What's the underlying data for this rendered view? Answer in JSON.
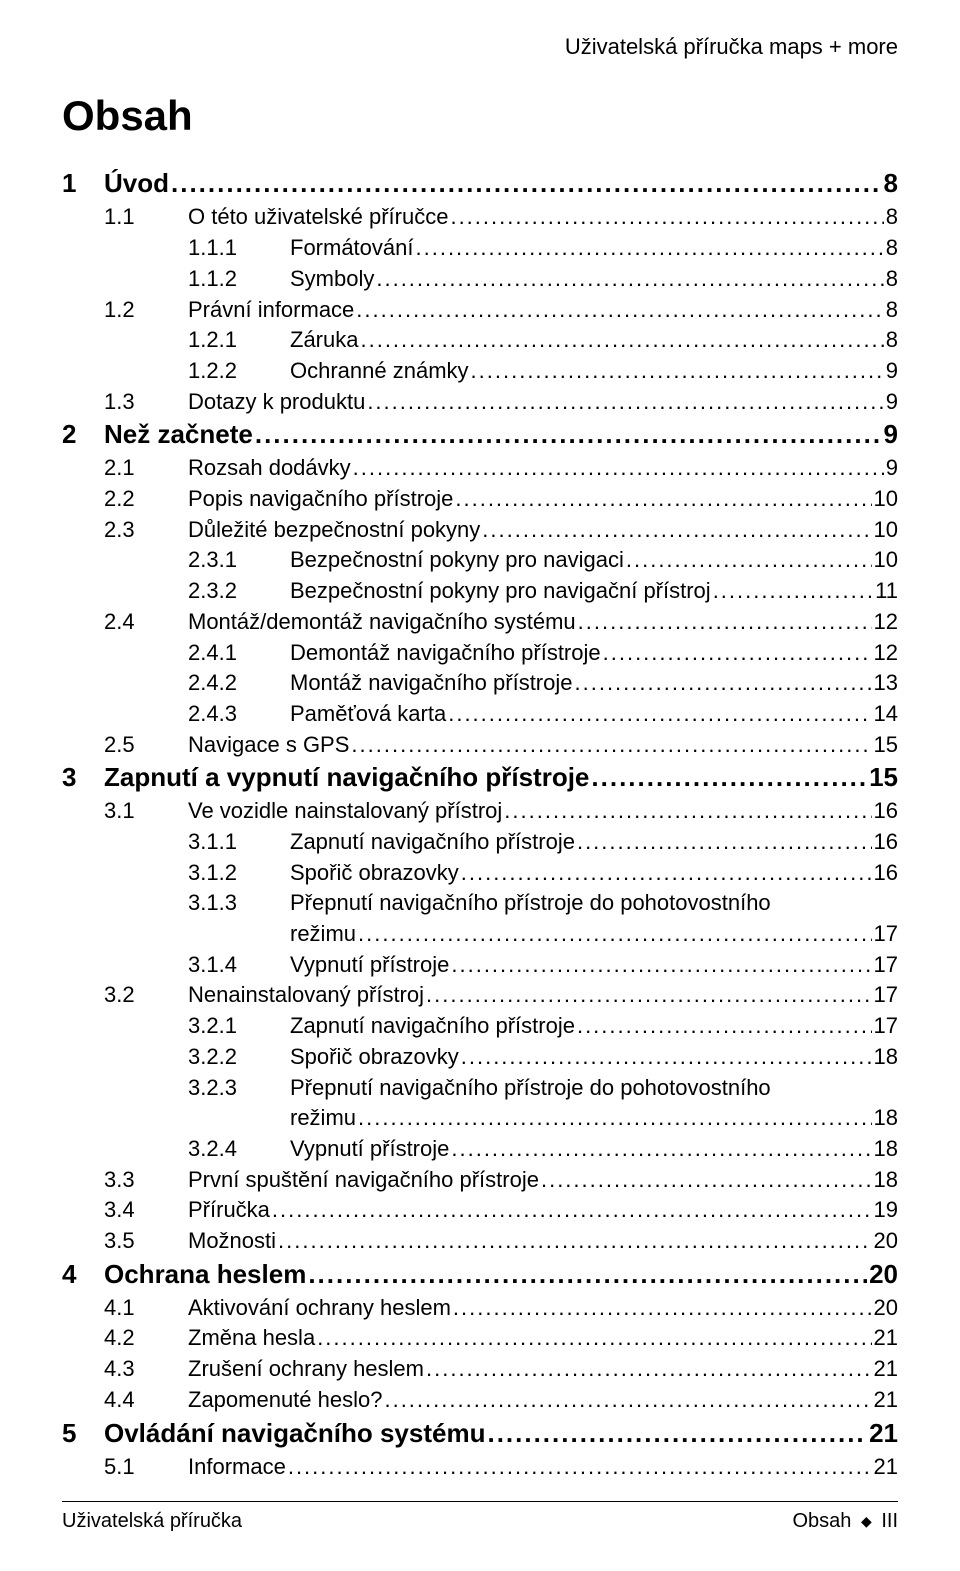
{
  "header": {
    "right": "Uživatelská příručka maps + more"
  },
  "title": "Obsah",
  "toc": [
    {
      "level": 0,
      "num": "1",
      "text": "Úvod",
      "page": "8"
    },
    {
      "level": 1,
      "num": "1.1",
      "text": "O této uživatelské příručce",
      "page": "8"
    },
    {
      "level": 2,
      "num": "1.1.1",
      "text": "Formátování",
      "page": "8"
    },
    {
      "level": 2,
      "num": "1.1.2",
      "text": "Symboly",
      "page": "8"
    },
    {
      "level": 1,
      "num": "1.2",
      "text": "Právní informace",
      "page": "8"
    },
    {
      "level": 2,
      "num": "1.2.1",
      "text": "Záruka",
      "page": "8"
    },
    {
      "level": 2,
      "num": "1.2.2",
      "text": "Ochranné známky",
      "page": "9"
    },
    {
      "level": 1,
      "num": "1.3",
      "text": "Dotazy k produktu",
      "page": "9"
    },
    {
      "level": 0,
      "num": "2",
      "text": "Než začnete",
      "page": "9"
    },
    {
      "level": 1,
      "num": "2.1",
      "text": "Rozsah dodávky",
      "page": "9"
    },
    {
      "level": 1,
      "num": "2.2",
      "text": "Popis navigačního přístroje",
      "page": "10"
    },
    {
      "level": 1,
      "num": "2.3",
      "text": "Důležité bezpečnostní pokyny",
      "page": "10"
    },
    {
      "level": 2,
      "num": "2.3.1",
      "text": "Bezpečnostní pokyny pro navigaci",
      "page": "10"
    },
    {
      "level": 2,
      "num": "2.3.2",
      "text": "Bezpečnostní pokyny pro navigační přístroj",
      "page": "11"
    },
    {
      "level": 1,
      "num": "2.4",
      "text": "Montáž/demontáž navigačního systému",
      "page": "12"
    },
    {
      "level": 2,
      "num": "2.4.1",
      "text": "Demontáž navigačního přístroje",
      "page": "12"
    },
    {
      "level": 2,
      "num": "2.4.2",
      "text": "Montáž navigačního přístroje",
      "page": "13"
    },
    {
      "level": 2,
      "num": "2.4.3",
      "text": "Paměťová karta",
      "page": "14"
    },
    {
      "level": 1,
      "num": "2.5",
      "text": "Navigace s GPS",
      "page": "15"
    },
    {
      "level": 0,
      "num": "3",
      "text": "Zapnutí a vypnutí navigačního přístroje",
      "page": "15"
    },
    {
      "level": 1,
      "num": "3.1",
      "text": "Ve vozidle nainstalovaný přístroj",
      "page": "16"
    },
    {
      "level": 2,
      "num": "3.1.1",
      "text": "Zapnutí navigačního přístroje",
      "page": "16"
    },
    {
      "level": 2,
      "num": "3.1.2",
      "text": "Spořič obrazovky",
      "page": "16"
    },
    {
      "level": 2,
      "num": "3.1.3",
      "text": "Přepnutí navigačního přístroje do pohotovostního",
      "page": ""
    },
    {
      "level": -1,
      "num": "",
      "text": "režimu",
      "page": "17"
    },
    {
      "level": 2,
      "num": "3.1.4",
      "text": "Vypnutí přístroje",
      "page": "17"
    },
    {
      "level": 1,
      "num": "3.2",
      "text": "Nenainstalovaný přístroj",
      "page": "17"
    },
    {
      "level": 2,
      "num": "3.2.1",
      "text": "Zapnutí navigačního přístroje",
      "page": "17"
    },
    {
      "level": 2,
      "num": "3.2.2",
      "text": "Spořič obrazovky",
      "page": "18"
    },
    {
      "level": 2,
      "num": "3.2.3",
      "text": "Přepnutí navigačního přístroje do pohotovostního",
      "page": ""
    },
    {
      "level": -1,
      "num": "",
      "text": "režimu",
      "page": "18"
    },
    {
      "level": 2,
      "num": "3.2.4",
      "text": "Vypnutí přístroje",
      "page": "18"
    },
    {
      "level": 1,
      "num": "3.3",
      "text": "První spuštění navigačního přístroje",
      "page": "18"
    },
    {
      "level": 1,
      "num": "3.4",
      "text": "Příručka",
      "page": "19"
    },
    {
      "level": 1,
      "num": "3.5",
      "text": "Možnosti",
      "page": "20"
    },
    {
      "level": 0,
      "num": "4",
      "text": "Ochrana heslem",
      "page": "20"
    },
    {
      "level": 1,
      "num": "4.1",
      "text": "Aktivování ochrany heslem",
      "page": "20"
    },
    {
      "level": 1,
      "num": "4.2",
      "text": "Změna hesla",
      "page": "21"
    },
    {
      "level": 1,
      "num": "4.3",
      "text": "Zrušení ochrany heslem",
      "page": "21"
    },
    {
      "level": 1,
      "num": "4.4",
      "text": "Zapomenuté heslo?",
      "page": "21"
    },
    {
      "level": 0,
      "num": "5",
      "text": "Ovládání navigačního systému",
      "page": "21"
    },
    {
      "level": 1,
      "num": "5.1",
      "text": "Informace",
      "page": "21"
    }
  ],
  "footer": {
    "left": "Uživatelská příručka",
    "right_label": "Obsah",
    "right_roman": "III"
  }
}
